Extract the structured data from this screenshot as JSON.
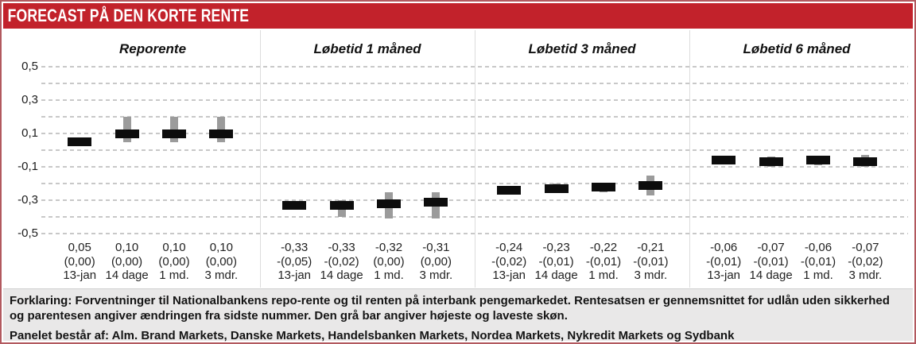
{
  "header": {
    "title": "FORECAST PÅ DEN KORTE RENTE"
  },
  "footer": {
    "explanation": "Forklaring: Forventninger til Nationalbankens repo-rente og til renten på interbank pengemarkedet. Rentesatsen er gennemsnittet for udlån uden sikkerhed og parentesen angiver ændringen fra sidste nummer. Den grå bar angiver højeste og laveste skøn.",
    "panel_line": "Panelet består af: Alm. Brand Markets, Danske Markets, Handelsbanken Markets, Nordea Markets, Nykredit Markets og Sydbank"
  },
  "colors": {
    "header_bg": "#c2222b",
    "outer_border": "#b2595f",
    "value_bar": "#0d0d0d",
    "range_bar": "#9b9b9b",
    "gridline": "#c8c8c8",
    "footer_bg": "#e9e8e8"
  },
  "chart_data": {
    "type": "scatter",
    "subtype": "marker-with-range",
    "ylim": [
      -0.5,
      0.5
    ],
    "ygrid_step": 0.1,
    "grid": true,
    "yticks": [
      {
        "v": 0.5,
        "label": "0,5"
      },
      {
        "v": 0.3,
        "label": "0,3"
      },
      {
        "v": 0.1,
        "label": "0,1"
      },
      {
        "v": -0.1,
        "label": "-0,1"
      },
      {
        "v": -0.3,
        "label": "-0,3"
      },
      {
        "v": -0.5,
        "label": "-0,5"
      }
    ],
    "panels": [
      {
        "title": "Reporente",
        "points": [
          {
            "period": "13-jan",
            "value": 0.05,
            "value_label": "0,05",
            "change_label": "(0,00)",
            "range": [
              0.05,
              0.05
            ]
          },
          {
            "period": "14 dage",
            "value": 0.1,
            "value_label": "0,10",
            "change_label": "(0,00)",
            "range": [
              0.05,
              0.2
            ]
          },
          {
            "period": "1 md.",
            "value": 0.1,
            "value_label": "0,10",
            "change_label": "(0,00)",
            "range": [
              0.05,
              0.2
            ]
          },
          {
            "period": "3 mdr.",
            "value": 0.1,
            "value_label": "0,10",
            "change_label": "(0,00)",
            "range": [
              0.05,
              0.2
            ]
          }
        ]
      },
      {
        "title": "Løbetid 1 måned",
        "points": [
          {
            "period": "13-jan",
            "value": -0.33,
            "value_label": "-0,33",
            "change_label": "-(0,05)",
            "range": [
              -0.33,
              -0.33
            ]
          },
          {
            "period": "14 dage",
            "value": -0.33,
            "value_label": "-0,33",
            "change_label": "-(0,02)",
            "range": [
              -0.4,
              -0.3
            ]
          },
          {
            "period": "1 md.",
            "value": -0.32,
            "value_label": "-0,32",
            "change_label": "(0,00)",
            "range": [
              -0.41,
              -0.25
            ]
          },
          {
            "period": "3 mdr.",
            "value": -0.31,
            "value_label": "-0,31",
            "change_label": "(0,00)",
            "range": [
              -0.41,
              -0.25
            ]
          }
        ]
      },
      {
        "title": "Løbetid 3 måned",
        "points": [
          {
            "period": "13-jan",
            "value": -0.24,
            "value_label": "-0,24",
            "change_label": "-(0,02)",
            "range": [
              -0.24,
              -0.24
            ]
          },
          {
            "period": "14 dage",
            "value": -0.23,
            "value_label": "-0,23",
            "change_label": "-(0,01)",
            "range": [
              -0.25,
              -0.2
            ]
          },
          {
            "period": "1 md.",
            "value": -0.22,
            "value_label": "-0,22",
            "change_label": "-(0,01)",
            "range": [
              -0.25,
              -0.2
            ]
          },
          {
            "period": "3 mdr.",
            "value": -0.21,
            "value_label": "-0,21",
            "change_label": "-(0,01)",
            "range": [
              -0.27,
              -0.15
            ]
          }
        ]
      },
      {
        "title": "Løbetid 6 måned",
        "points": [
          {
            "period": "13-jan",
            "value": -0.06,
            "value_label": "-0,06",
            "change_label": "-(0,01)",
            "range": [
              -0.06,
              -0.06
            ]
          },
          {
            "period": "14 dage",
            "value": -0.07,
            "value_label": "-0,07",
            "change_label": "-(0,01)",
            "range": [
              -0.1,
              -0.04
            ]
          },
          {
            "period": "1 md.",
            "value": -0.06,
            "value_label": "-0,06",
            "change_label": "-(0,01)",
            "range": [
              -0.09,
              -0.04
            ]
          },
          {
            "period": "3 mdr.",
            "value": -0.07,
            "value_label": "-0,07",
            "change_label": "-(0,02)",
            "range": [
              -0.1,
              -0.03
            ]
          }
        ]
      }
    ]
  }
}
